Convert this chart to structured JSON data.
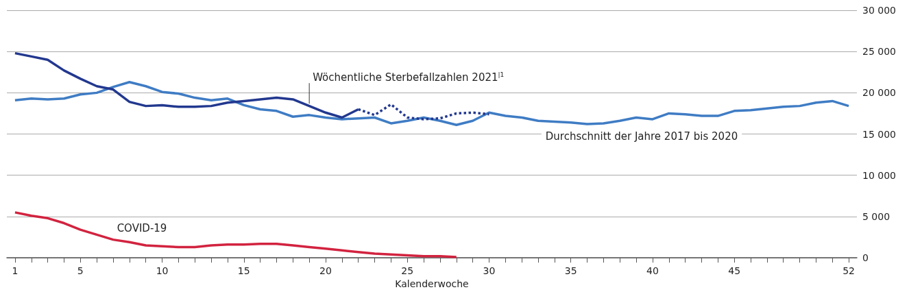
{
  "chart_data": {
    "type": "line",
    "xlabel": "Kalenderwoche",
    "x": [
      1,
      2,
      3,
      4,
      5,
      6,
      7,
      8,
      9,
      10,
      11,
      12,
      13,
      14,
      15,
      16,
      17,
      18,
      19,
      20,
      21,
      22,
      23,
      24,
      25,
      26,
      27,
      28,
      29,
      30,
      31,
      32,
      33,
      34,
      35,
      36,
      37,
      38,
      39,
      40,
      41,
      42,
      43,
      44,
      45,
      46,
      47,
      48,
      49,
      50,
      51,
      52
    ],
    "series": [
      {
        "color": "#3f7cc4",
        "values": [
          19100,
          19300,
          19200,
          19300,
          19800,
          20000,
          20700,
          21300,
          20800,
          20100,
          19900,
          19400,
          19100,
          19300,
          18500,
          18000,
          17800,
          17100,
          17300,
          17000,
          16800,
          16900,
          17000,
          16300,
          16600,
          17000,
          16600,
          16100,
          16600,
          17600,
          17200,
          17000,
          16600,
          16500,
          16400,
          16200,
          16300,
          16600,
          17000,
          16800,
          17500,
          17400,
          17200,
          17200,
          17800,
          17900,
          18100,
          18300,
          18400,
          18800,
          19000,
          18400
        ]
      },
      {
        "color": "#22388f",
        "x": [
          1,
          2,
          3,
          4,
          5,
          6,
          7,
          8,
          9,
          10,
          11,
          12,
          13,
          14,
          15,
          16,
          17,
          18,
          19,
          20,
          21,
          22
        ],
        "values": [
          24800,
          24400,
          24000,
          22700,
          21700,
          20800,
          20400,
          18900,
          18400,
          18500,
          18300,
          18300,
          18400,
          18800,
          19000,
          19200,
          19400,
          19200,
          18400,
          17600,
          17000,
          18000
        ]
      },
      {
        "color": "#22388f",
        "line_style": "dotted",
        "x": [
          22,
          23,
          24,
          25,
          26,
          27,
          28,
          29,
          30
        ],
        "values": [
          18000,
          17300,
          18600,
          17000,
          16800,
          16900,
          17500,
          17600,
          17400
        ]
      },
      {
        "color": "#d2233f",
        "x": [
          1,
          2,
          3,
          4,
          5,
          6,
          7,
          8,
          9,
          10,
          11,
          12,
          13,
          14,
          15,
          16,
          17,
          18,
          19,
          20,
          21,
          22,
          23,
          24,
          25,
          26,
          27,
          28
        ],
        "values": [
          5500,
          5100,
          4800,
          4200,
          3400,
          2800,
          2200,
          1900,
          1500,
          1400,
          1300,
          1300,
          1500,
          1600,
          1600,
          1700,
          1700,
          1500,
          1300,
          1100,
          900,
          700,
          500,
          400,
          300,
          200,
          200,
          100
        ]
      }
    ],
    "annotations": [
      {
        "text": "Wöchentliche Sterbefallzahlen 2021$^{|1}$",
        "x": 19,
        "y": 18350
      },
      "Durchschnitt der Jahre 2017 bis 2020",
      "COVID-19"
    ],
    "xlim": [
      0.5,
      52.5
    ],
    "xticks": [
      1,
      {
        "value": 2,
        "label": null
      },
      {
        "value": 3,
        "label": null
      },
      {
        "value": 4,
        "label": null
      },
      5,
      {
        "value": 6,
        "label": null
      },
      {
        "value": 7,
        "label": null
      },
      {
        "value": 8,
        "label": null
      },
      {
        "value": 9,
        "label": null
      },
      10,
      {
        "value": 11,
        "label": null
      },
      {
        "value": 12,
        "label": null
      },
      {
        "value": 13,
        "label": null
      },
      {
        "value": 14,
        "label": null
      },
      15,
      {
        "value": 16,
        "label": null
      },
      {
        "value": 17,
        "label": null
      },
      {
        "value": 18,
        "label": null
      },
      {
        "value": 19,
        "label": null
      },
      20,
      {
        "value": 21,
        "label": null
      },
      {
        "value": 22,
        "label": null
      },
      {
        "value": 23,
        "label": null
      },
      {
        "value": 24,
        "label": null
      },
      25,
      {
        "value": 26,
        "label": null
      },
      {
        "value": 27,
        "label": null
      },
      {
        "value": 28,
        "label": null
      },
      {
        "value": 29,
        "label": null
      },
      30,
      {
        "value": 31,
        "label": null
      },
      {
        "value": 32,
        "label": null
      },
      {
        "value": 33,
        "label": null
      },
      {
        "value": 34,
        "label": null
      },
      35,
      {
        "value": 36,
        "label": null
      },
      {
        "value": 37,
        "label": null
      },
      {
        "value": 38,
        "label": null
      },
      {
        "value": 39,
        "label": null
      },
      40,
      {
        "value": 41,
        "label": null
      },
      {
        "value": 42,
        "label": null
      },
      {
        "value": 43,
        "label": null
      },
      {
        "value": 44,
        "label": null
      },
      45,
      {
        "value": 46,
        "label": null
      },
      {
        "value": 47,
        "label": null
      },
      {
        "value": 48,
        "label": null
      },
      {
        "value": 49,
        "label": null
      },
      {
        "value": 50,
        "label": null
      },
      {
        "value": 51,
        "label": null
      },
      52
    ],
    "ylim": [
      0,
      30000
    ],
    "yticks": [
      0,
      {
        "value": 5000,
        "label": "5 000"
      },
      {
        "value": 10000,
        "label": "10 000"
      },
      {
        "value": 15000,
        "label": "15 000"
      },
      {
        "value": 20000,
        "label": "20 000"
      },
      {
        "value": 25000,
        "label": "25 000"
      },
      {
        "value": 30000,
        "label": "30 000"
      }
    ],
    "grid": "y",
    "marker": "none",
    "line_style": "solid"
  }
}
